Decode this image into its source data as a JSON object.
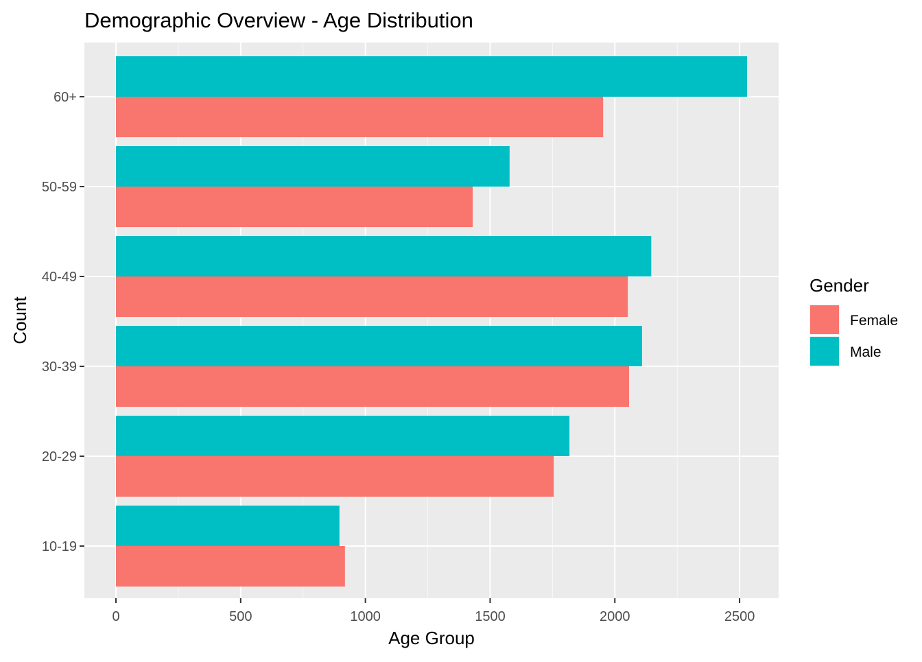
{
  "chart_data": {
    "type": "bar",
    "orientation": "horizontal",
    "title": "Demographic Overview - Age Distribution",
    "xlabel": "Age Group",
    "ylabel": "Count",
    "categories": [
      "10-19",
      "20-29",
      "30-39",
      "40-49",
      "50-59",
      "60+"
    ],
    "series": [
      {
        "name": "Female",
        "color": "#F8766D",
        "values": [
          918,
          1755,
          2057,
          2052,
          1430,
          1953
        ]
      },
      {
        "name": "Male",
        "color": "#00BFC4",
        "values": [
          896,
          1818,
          2109,
          2146,
          1578,
          2530
        ]
      }
    ],
    "xlim": [
      0,
      2650
    ],
    "x_ticks": [
      "0",
      "500",
      "1000",
      "1500",
      "2000",
      "2500"
    ],
    "grid": true,
    "panel_background": "#EBEBEB",
    "legend": {
      "title": "Gender",
      "position": "right",
      "items": [
        "Female",
        "Male"
      ]
    }
  }
}
